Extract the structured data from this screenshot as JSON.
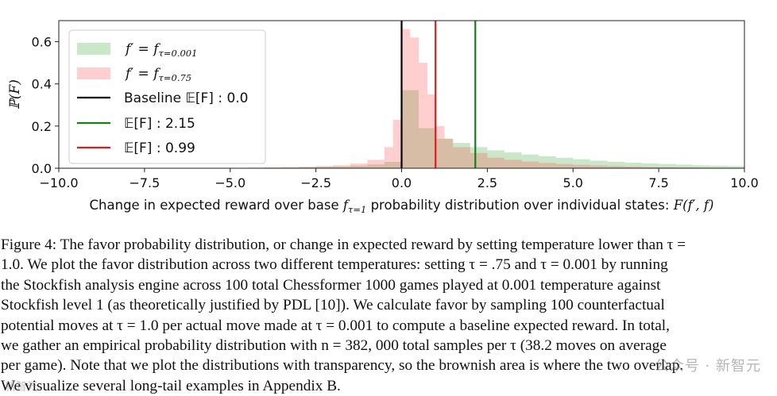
{
  "chart_data": {
    "type": "bar",
    "title": "",
    "xlabel": "Change in expected reward over base f_{τ=1} probability distribution over individual states: F(f′, f)",
    "xlabel_parts": {
      "prefix": "Change in expected reward over base ",
      "f": "f",
      "sub": "τ=1",
      "middle": " probability distribution over individual states: ",
      "math": "F(f′, f)"
    },
    "ylabel": "ℙ(F)",
    "xlim": [
      -10.0,
      10.0
    ],
    "ylim": [
      0.0,
      0.7
    ],
    "x_ticks": [
      -10.0,
      -7.5,
      -5.0,
      -2.5,
      0.0,
      2.5,
      5.0,
      7.5,
      10.0
    ],
    "x_tick_labels": [
      "−10.0",
      "−7.5",
      "−5.0",
      "−2.5",
      "0.0",
      "2.5",
      "5.0",
      "7.5",
      "10.0"
    ],
    "y_ticks": [
      0.0,
      0.2,
      0.4,
      0.6
    ],
    "y_tick_labels": [
      "0.0",
      "0.2",
      "0.4",
      "0.6"
    ],
    "bin_width": 0.5,
    "series": [
      {
        "name": "f′ = f_{τ=0.001}",
        "legend_lhs": "f′ = f",
        "legend_sub": "τ=0.001",
        "color": "#2ca02c",
        "alpha": 0.25,
        "bins": [
          [
            -10.0,
            0.0
          ],
          [
            -9.5,
            0.0
          ],
          [
            -9.0,
            0.0
          ],
          [
            -8.5,
            0.0
          ],
          [
            -8.0,
            0.0
          ],
          [
            -7.5,
            0.0
          ],
          [
            -7.0,
            0.0
          ],
          [
            -6.5,
            0.0
          ],
          [
            -6.0,
            0.001
          ],
          [
            -5.5,
            0.001
          ],
          [
            -5.0,
            0.002
          ],
          [
            -4.5,
            0.002
          ],
          [
            -4.0,
            0.003
          ],
          [
            -3.5,
            0.004
          ],
          [
            -3.0,
            0.005
          ],
          [
            -2.5,
            0.007
          ],
          [
            -2.0,
            0.008
          ],
          [
            -1.5,
            0.012
          ],
          [
            -1.0,
            0.018
          ],
          [
            -0.5,
            0.03
          ],
          [
            0.0,
            0.37
          ],
          [
            0.5,
            0.19
          ],
          [
            1.0,
            0.14
          ],
          [
            1.5,
            0.12
          ],
          [
            2.0,
            0.1
          ],
          [
            2.5,
            0.085
          ],
          [
            3.0,
            0.075
          ],
          [
            3.5,
            0.065
          ],
          [
            4.0,
            0.057
          ],
          [
            4.5,
            0.05
          ],
          [
            5.0,
            0.043
          ],
          [
            5.5,
            0.036
          ],
          [
            6.0,
            0.031
          ],
          [
            6.5,
            0.027
          ],
          [
            7.0,
            0.023
          ],
          [
            7.5,
            0.02
          ],
          [
            8.0,
            0.017
          ],
          [
            8.5,
            0.014
          ],
          [
            9.0,
            0.012
          ],
          [
            9.5,
            0.01
          ]
        ]
      },
      {
        "name": "f′ = f_{τ=0.75}",
        "legend_lhs": "f′ = f",
        "legend_sub": "τ=0.75",
        "color": "#ff3c3c",
        "alpha": 0.25,
        "bins": [
          [
            -10.0,
            0.0
          ],
          [
            -9.5,
            0.0
          ],
          [
            -9.0,
            0.0
          ],
          [
            -8.5,
            0.0
          ],
          [
            -8.0,
            0.0
          ],
          [
            -7.5,
            0.0
          ],
          [
            -7.0,
            0.0
          ],
          [
            -6.5,
            0.0
          ],
          [
            -6.0,
            0.001
          ],
          [
            -5.5,
            0.001
          ],
          [
            -5.0,
            0.002
          ],
          [
            -4.5,
            0.003
          ],
          [
            -4.0,
            0.004
          ],
          [
            -3.5,
            0.005
          ],
          [
            -3.0,
            0.007
          ],
          [
            -2.5,
            0.01
          ],
          [
            -2.0,
            0.014
          ],
          [
            -1.5,
            0.022
          ],
          [
            -1.0,
            0.04
          ],
          [
            -0.5,
            0.1
          ],
          [
            -0.25,
            0.23
          ],
          [
            0.0,
            0.66
          ],
          [
            0.25,
            0.62
          ],
          [
            0.5,
            0.5
          ],
          [
            0.75,
            0.35
          ],
          [
            1.0,
            0.2
          ],
          [
            1.25,
            0.14
          ],
          [
            1.5,
            0.1
          ],
          [
            2.0,
            0.072
          ],
          [
            2.5,
            0.05
          ],
          [
            3.0,
            0.04
          ],
          [
            3.5,
            0.032
          ],
          [
            4.0,
            0.025
          ],
          [
            4.5,
            0.02
          ],
          [
            5.0,
            0.016
          ],
          [
            5.5,
            0.013
          ],
          [
            6.0,
            0.01
          ],
          [
            6.5,
            0.008
          ],
          [
            7.0,
            0.006
          ],
          [
            7.5,
            0.005
          ],
          [
            8.0,
            0.004
          ],
          [
            8.5,
            0.003
          ],
          [
            9.0,
            0.002
          ],
          [
            9.5,
            0.002
          ]
        ]
      }
    ],
    "vlines": [
      {
        "name": "Baseline 𝔼[F] : 0.0",
        "legend_text": "Baseline 𝔼[F] : 0.0",
        "x": 0.0,
        "color": "#000000"
      },
      {
        "name": "𝔼[F] : 2.15",
        "legend_text": "𝔼[F] : 2.15",
        "x": 2.15,
        "color": "#138013"
      },
      {
        "name": "𝔼[F] : 0.99",
        "legend_text": "𝔼[F] : 0.99",
        "x": 0.99,
        "color": "#e31a1c"
      }
    ],
    "legend_position": "top-left"
  },
  "caption": {
    "lines": [
      "Figure 4: The favor probability distribution, or change in expected reward by setting temperature lower than τ =",
      "1.0. We plot the favor distribution across two different temperatures: setting τ = .75 and τ = 0.001 by running",
      "the Stockfish analysis engine across 100 total Chessformer 1000 games played at 0.001 temperature against",
      "Stockfish level 1 (as theoretically justified by PDL [10]). We calculate favor by sampling 100 counterfactual",
      "potential moves at τ = 1.0 per actual move made at τ = 0.001 to compute a baseline expected reward. In total,",
      "we gather an empirical probability distribution with n = 382, 000 total samples per τ (38.2 moves on average",
      "per game). Note that we plot the distributions with transparency, so the brownish area is where the two overlap.",
      "We visualize several long-tail examples in Appendix B."
    ]
  },
  "watermark": {
    "right_text": "公众号 · 新智元",
    "left_text": "新智元"
  }
}
